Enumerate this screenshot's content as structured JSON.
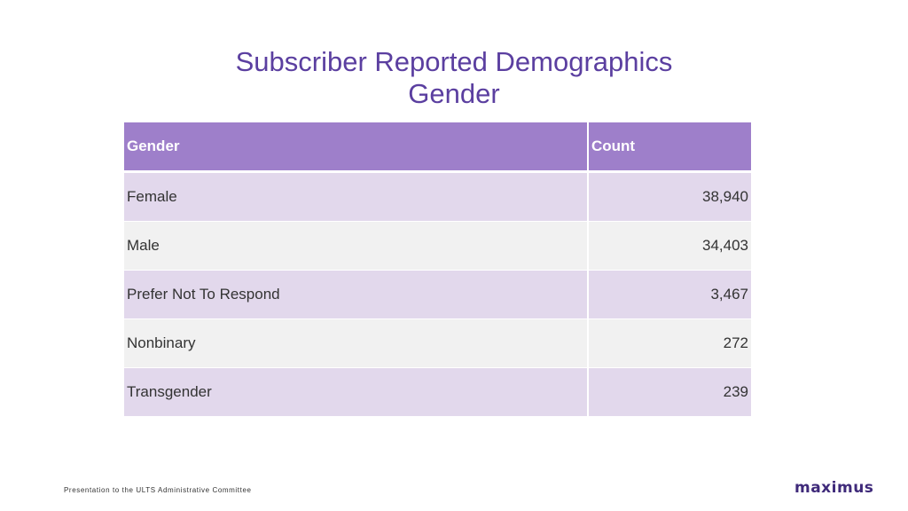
{
  "title": {
    "line1": "Subscriber Reported Demographics",
    "line2": "Gender"
  },
  "table": {
    "headers": [
      "Gender",
      "Count"
    ],
    "rows": [
      {
        "gender": "Female",
        "count": "38,940"
      },
      {
        "gender": "Male",
        "count": "34,403"
      },
      {
        "gender": "Prefer Not To Respond",
        "count": "3,467"
      },
      {
        "gender": "Nonbinary",
        "count": "272"
      },
      {
        "gender": "Transgender",
        "count": "239"
      }
    ]
  },
  "footer": {
    "text": "Presentation to the ULTS Administrative Committee",
    "logo": "maximus"
  },
  "colors": {
    "title": "#5b3fa0",
    "header_bg": "#9e7fca",
    "row_odd": "#e2d8ec",
    "row_even": "#f1f1f1",
    "logo": "#3f2a7a"
  }
}
